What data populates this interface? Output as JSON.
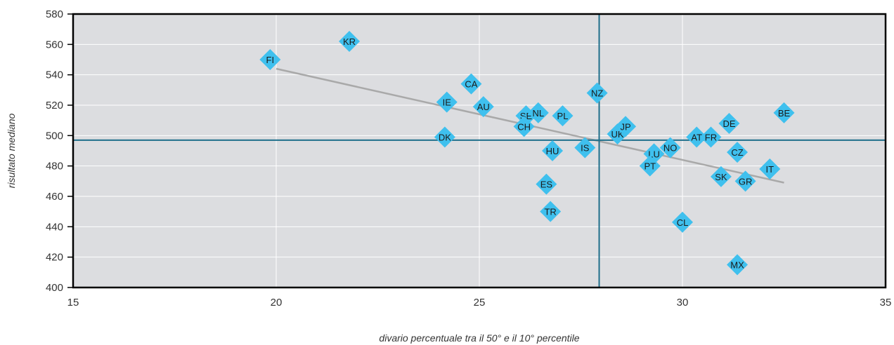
{
  "chart_data": {
    "type": "scatter",
    "title": "",
    "xlabel": "divario percentuale tra il 50° e il 10° percentile",
    "ylabel": "risultato mediano",
    "xlim": [
      15,
      35
    ],
    "ylim": [
      400,
      580
    ],
    "x_ticks": [
      "15",
      "20",
      "25",
      "30",
      "35"
    ],
    "y_ticks": [
      "400",
      "420",
      "440",
      "460",
      "480",
      "500",
      "520",
      "540",
      "560",
      "580"
    ],
    "grid": true,
    "legend": "none",
    "colors": {
      "plot_background": "#dcdde0",
      "marker": "#3fc0ee",
      "reference_lines": "#1f6f8b",
      "trend_line": "#a9a9a9",
      "grid": "#ffffff",
      "frame": "#000000"
    },
    "reference_lines": {
      "x": 27.95,
      "y": 497
    },
    "trend_line": {
      "x": [
        20,
        32.5
      ],
      "y": [
        544,
        469
      ]
    },
    "points": [
      {
        "label": "KR",
        "x": 21.8,
        "y": 562
      },
      {
        "label": "FI",
        "x": 19.85,
        "y": 550
      },
      {
        "label": "CA",
        "x": 24.8,
        "y": 534
      },
      {
        "label": "IE",
        "x": 24.2,
        "y": 522
      },
      {
        "label": "AU",
        "x": 25.1,
        "y": 519
      },
      {
        "label": "NZ",
        "x": 27.9,
        "y": 528
      },
      {
        "label": "SE",
        "x": 26.15,
        "y": 513
      },
      {
        "label": "NL",
        "x": 26.45,
        "y": 515
      },
      {
        "label": "PL",
        "x": 27.05,
        "y": 513
      },
      {
        "label": "CH",
        "x": 26.1,
        "y": 506
      },
      {
        "label": "DK",
        "x": 24.15,
        "y": 499
      },
      {
        "label": "HU",
        "x": 26.8,
        "y": 490
      },
      {
        "label": "IS",
        "x": 27.6,
        "y": 492
      },
      {
        "label": "UK",
        "x": 28.4,
        "y": 501
      },
      {
        "label": "JP",
        "x": 28.6,
        "y": 506
      },
      {
        "label": "ES",
        "x": 26.65,
        "y": 468
      },
      {
        "label": "TR",
        "x": 26.75,
        "y": 450
      },
      {
        "label": "LU",
        "x": 29.3,
        "y": 488
      },
      {
        "label": "NO",
        "x": 29.7,
        "y": 492
      },
      {
        "label": "PT",
        "x": 29.2,
        "y": 480
      },
      {
        "label": "AT",
        "x": 30.35,
        "y": 499
      },
      {
        "label": "FR",
        "x": 30.7,
        "y": 499
      },
      {
        "label": "DE",
        "x": 31.15,
        "y": 508
      },
      {
        "label": "CZ",
        "x": 31.35,
        "y": 489
      },
      {
        "label": "SK",
        "x": 30.95,
        "y": 473
      },
      {
        "label": "GR",
        "x": 31.55,
        "y": 470
      },
      {
        "label": "IT",
        "x": 32.15,
        "y": 478
      },
      {
        "label": "BE",
        "x": 32.5,
        "y": 515
      },
      {
        "label": "CL",
        "x": 30.0,
        "y": 443
      },
      {
        "label": "MX",
        "x": 31.35,
        "y": 415
      }
    ]
  }
}
